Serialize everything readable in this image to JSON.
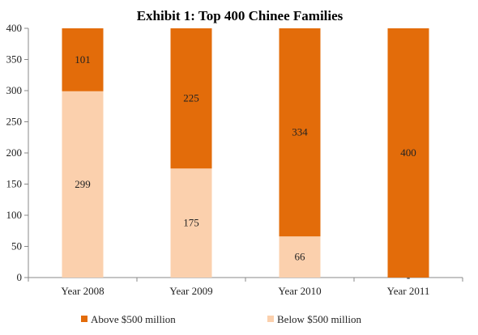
{
  "chart_data": {
    "type": "bar",
    "stacked": true,
    "title": "Exhibit 1: Top 400 Chinee Families",
    "xlabel": "",
    "ylabel": "",
    "categories": [
      "Year 2008",
      "Year 2009",
      "Year 2010",
      "Year 2011"
    ],
    "series": [
      {
        "name": "Below $500 million",
        "values": [
          299,
          175,
          66,
          0
        ],
        "labels": [
          "299",
          "175",
          "66",
          "-"
        ],
        "color": "#fbd0ad"
      },
      {
        "name": "Above $500 million",
        "values": [
          101,
          225,
          334,
          400
        ],
        "labels": [
          "101",
          "225",
          "334",
          "400"
        ],
        "color": "#e36c0a"
      }
    ],
    "ylim": [
      0,
      400
    ],
    "yticks": [
      0,
      50,
      100,
      150,
      200,
      250,
      300,
      350,
      400
    ],
    "grid": false,
    "legend": {
      "position": "bottom",
      "order": [
        "Above $500 million",
        "Below $500 million"
      ]
    }
  }
}
